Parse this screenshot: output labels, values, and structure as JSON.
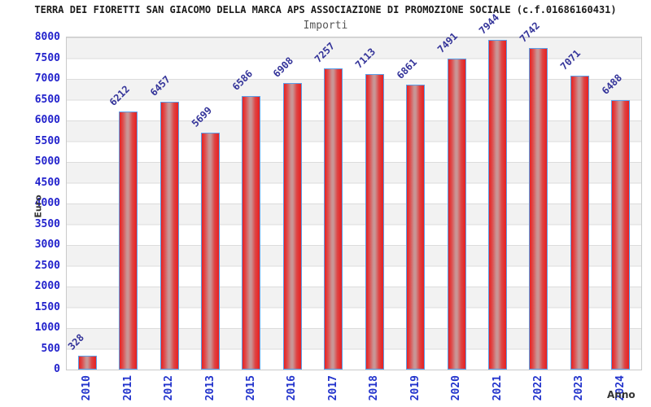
{
  "header": {
    "title": "TERRA DEI FIORETTI SAN GIACOMO DELLA MARCA APS ASSOCIAZIONE DI PROMOZIONE SOCIALE (c.f.01686160431)"
  },
  "chart_data": {
    "type": "bar",
    "title": "Importi",
    "categories": [
      "2010",
      "2011",
      "2012",
      "2013",
      "2015",
      "2016",
      "2017",
      "2018",
      "2019",
      "2020",
      "2021",
      "2022",
      "2023",
      "2024"
    ],
    "values": [
      328,
      6212,
      6457,
      5699,
      6586,
      6908,
      7257,
      7113,
      6861,
      7491,
      7944,
      7742,
      7071,
      6488
    ],
    "xlabel": "Anno",
    "ylabel": "Euro",
    "ylim": [
      0,
      8000
    ],
    "y_ticks": [
      0,
      500,
      1000,
      1500,
      2000,
      2500,
      3000,
      3500,
      4000,
      4500,
      5000,
      5500,
      6000,
      6500,
      7000,
      7500,
      8000
    ],
    "grid": "horizontal gridlines every 500 with alternating gray/white bands",
    "legend_position": "none",
    "value_labels_rotation_deg": -45,
    "x_tick_rotation_deg": -90
  },
  "colors": {
    "bar_edge": "#e82020",
    "bar_center_highlight": "#c99595",
    "bar_border": "#5a9ee8",
    "axis_tick_text": "#2222cc",
    "value_label_text": "#333399",
    "band_gray": "#f2f2f2",
    "gridline": "#dcdcdc",
    "plot_border": "#c9c9c9",
    "title_text": "#1a1a1a",
    "subtitle_text": "#555555",
    "axis_title_text": "#333333"
  }
}
